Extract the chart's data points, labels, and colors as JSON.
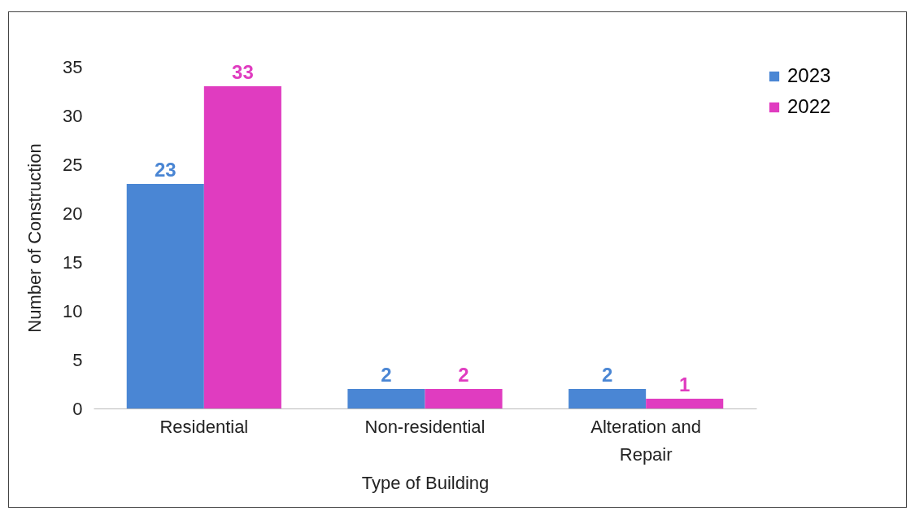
{
  "chart_data": {
    "type": "bar",
    "xlabel": "Type of Building",
    "ylabel": "Number of Construction",
    "categories": [
      "Residential",
      "Non-residential",
      "Alteration and Repair"
    ],
    "series": [
      {
        "name": "2023",
        "color": "#4a86d4",
        "values": [
          23,
          2,
          2
        ]
      },
      {
        "name": "2022",
        "color": "#e03cc0",
        "values": [
          33,
          2,
          1
        ]
      }
    ],
    "ylim": [
      0,
      35
    ],
    "yticks": [
      0,
      5,
      10,
      15,
      20,
      25,
      30,
      35
    ],
    "grid": false,
    "legend": "top right",
    "data_labels": true
  }
}
